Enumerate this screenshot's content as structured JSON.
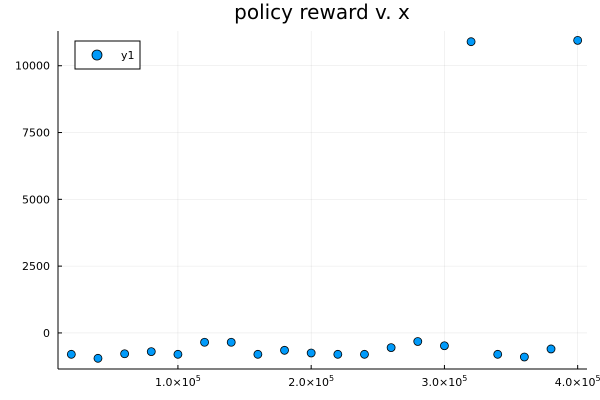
{
  "chart_data": {
    "type": "scatter",
    "title": "policy reward v. x",
    "xlabel": "",
    "ylabel": "",
    "xlim": [
      10000,
      407000
    ],
    "ylim": [
      -1350,
      11300
    ],
    "grid": true,
    "legend": {
      "position": "top-left",
      "entries": [
        "y1"
      ]
    },
    "x_ticks": [
      {
        "value": 100000,
        "mantissa": "1.0×10",
        "exponent": "5"
      },
      {
        "value": 200000,
        "mantissa": "2.0×10",
        "exponent": "5"
      },
      {
        "value": 300000,
        "mantissa": "3.0×10",
        "exponent": "5"
      },
      {
        "value": 400000,
        "mantissa": "4.0×10",
        "exponent": "5"
      }
    ],
    "y_ticks": [
      {
        "value": 0,
        "label": "0"
      },
      {
        "value": 2500,
        "label": "2500"
      },
      {
        "value": 5000,
        "label": "5000"
      },
      {
        "value": 7500,
        "label": "7500"
      },
      {
        "value": 10000,
        "label": "10000"
      }
    ],
    "series": [
      {
        "name": "y1",
        "color": "#009AFA",
        "x": [
          20000,
          40000,
          60000,
          80000,
          100000,
          120000,
          140000,
          160000,
          180000,
          200000,
          220000,
          240000,
          260000,
          280000,
          300000,
          320000,
          340000,
          360000,
          380000,
          400000
        ],
        "y": [
          -800,
          -950,
          -780,
          -700,
          -800,
          -350,
          -350,
          -800,
          -650,
          -750,
          -800,
          -800,
          -550,
          -320,
          -480,
          10900,
          -800,
          -900,
          -600,
          10950
        ]
      }
    ]
  }
}
